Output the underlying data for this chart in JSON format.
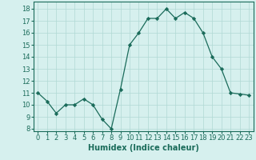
{
  "x": [
    0,
    1,
    2,
    3,
    4,
    5,
    6,
    7,
    8,
    9,
    10,
    11,
    12,
    13,
    14,
    15,
    16,
    17,
    18,
    19,
    20,
    21,
    22,
    23
  ],
  "y": [
    11,
    10.3,
    9.3,
    10.0,
    10.0,
    10.5,
    10.0,
    8.8,
    8.0,
    11.3,
    15.0,
    16.0,
    17.2,
    17.2,
    18.0,
    17.2,
    17.7,
    17.2,
    16.0,
    14.0,
    13.0,
    11.0,
    10.9,
    10.8
  ],
  "xlabel": "Humidex (Indice chaleur)",
  "xlim": [
    -0.5,
    23.5
  ],
  "ylim": [
    7.8,
    18.6
  ],
  "yticks": [
    8,
    9,
    10,
    11,
    12,
    13,
    14,
    15,
    16,
    17,
    18
  ],
  "xticks": [
    0,
    1,
    2,
    3,
    4,
    5,
    6,
    7,
    8,
    9,
    10,
    11,
    12,
    13,
    14,
    15,
    16,
    17,
    18,
    19,
    20,
    21,
    22,
    23
  ],
  "line_color": "#1a6b5a",
  "marker": "D",
  "marker_size": 2.2,
  "bg_color": "#d6f0ee",
  "grid_color": "#b0d8d4",
  "label_fontsize": 7,
  "tick_fontsize": 6
}
